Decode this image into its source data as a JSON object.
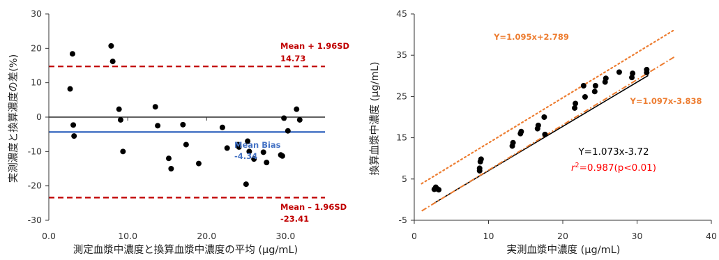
{
  "chart_data": [
    {
      "type": "scatter",
      "title": "",
      "xlabel": "測定血漿中濃度と換算血漿中濃度の平均 (μg/mL)",
      "ylabel": "実測濃度と換算濃度の差(%)",
      "xlim": [
        0,
        35
      ],
      "ylim": [
        -30,
        30
      ],
      "x_ticks": [
        "0.0",
        "10.0",
        "20.0",
        "30.0"
      ],
      "x_tick_values": [
        0,
        10,
        20,
        30
      ],
      "y_ticks": [
        "30",
        "20",
        "10",
        "0",
        "-10",
        "-20",
        "-30"
      ],
      "y_tick_values": [
        30,
        20,
        10,
        0,
        -10,
        -20,
        -30
      ],
      "grid": false,
      "colors": {
        "points": "#000000",
        "bias": "#4472c4",
        "limits": "#c00000",
        "zero": "#000000"
      },
      "series": [
        {
          "points": [
            {
              "x": 2.7,
              "y": 8.2
            },
            {
              "x": 3.0,
              "y": 18.4
            },
            {
              "x": 3.1,
              "y": -2.3
            },
            {
              "x": 3.2,
              "y": -5.5
            },
            {
              "x": 7.9,
              "y": 20.7
            },
            {
              "x": 8.1,
              "y": 16.2
            },
            {
              "x": 8.9,
              "y": 2.3
            },
            {
              "x": 9.1,
              "y": -0.8
            },
            {
              "x": 9.4,
              "y": -10.0
            },
            {
              "x": 13.5,
              "y": 3.0
            },
            {
              "x": 13.8,
              "y": -2.5
            },
            {
              "x": 15.2,
              "y": -12.0
            },
            {
              "x": 15.5,
              "y": -15.0
            },
            {
              "x": 17.0,
              "y": -2.2
            },
            {
              "x": 17.4,
              "y": -8.0
            },
            {
              "x": 19.0,
              "y": -13.5
            },
            {
              "x": 22.0,
              "y": -3.0
            },
            {
              "x": 22.6,
              "y": -9.0
            },
            {
              "x": 24.0,
              "y": -8.0
            },
            {
              "x": 24.1,
              "y": -8.7
            },
            {
              "x": 25.0,
              "y": -19.5
            },
            {
              "x": 25.2,
              "y": -7.0
            },
            {
              "x": 25.4,
              "y": -10.0
            },
            {
              "x": 26.0,
              "y": -12.2
            },
            {
              "x": 27.2,
              "y": -10.2
            },
            {
              "x": 27.6,
              "y": -13.2
            },
            {
              "x": 29.4,
              "y": -11.0
            },
            {
              "x": 29.6,
              "y": -11.3
            },
            {
              "x": 29.8,
              "y": -0.3
            },
            {
              "x": 30.3,
              "y": -4.0
            },
            {
              "x": 31.4,
              "y": 2.3
            },
            {
              "x": 31.8,
              "y": -0.8
            }
          ]
        }
      ],
      "reference_lines": [
        {
          "y": 14.73,
          "style": "dashed",
          "color": "#c00000",
          "label": "Mean + 1.96SD",
          "value_label": "14.73"
        },
        {
          "y": -4.34,
          "style": "solid",
          "color": "#4472c4",
          "label": "Mean Bias",
          "value_label": "-4.34"
        },
        {
          "y": -23.41,
          "style": "dashed",
          "color": "#c00000",
          "label": "Mean – 1.96SD",
          "value_label": "-23.41"
        },
        {
          "y": 0,
          "style": "solid",
          "color": "#000000"
        }
      ]
    },
    {
      "type": "scatter",
      "title": "",
      "xlabel": "実測血漿中濃度 (μg/mL)",
      "ylabel": "換算血漿中濃度 (μg/mL)",
      "xlim": [
        0,
        40
      ],
      "ylim": [
        -5,
        45
      ],
      "x_ticks": [
        "0",
        "10",
        "20",
        "30",
        "40"
      ],
      "x_tick_values": [
        0,
        10,
        20,
        30,
        40
      ],
      "y_ticks": [
        "45",
        "35",
        "25",
        "15",
        "5",
        "-5"
      ],
      "y_tick_values": [
        45,
        35,
        25,
        15,
        5,
        -5
      ],
      "grid": false,
      "colors": {
        "points": "#000000",
        "fit": "#000000",
        "bounds": "#ed7d31",
        "r2": "#ff0000"
      },
      "series": [
        {
          "points": [
            {
              "x": 2.7,
              "y": 2.5
            },
            {
              "x": 2.9,
              "y": 3.0
            },
            {
              "x": 3.1,
              "y": 2.6
            },
            {
              "x": 3.3,
              "y": 2.4
            },
            {
              "x": 8.8,
              "y": 7.0
            },
            {
              "x": 8.8,
              "y": 7.6
            },
            {
              "x": 8.9,
              "y": 9.2
            },
            {
              "x": 9.0,
              "y": 9.8
            },
            {
              "x": 13.2,
              "y": 13.0
            },
            {
              "x": 13.3,
              "y": 13.8
            },
            {
              "x": 14.3,
              "y": 16.0
            },
            {
              "x": 14.4,
              "y": 16.5
            },
            {
              "x": 16.6,
              "y": 17.2
            },
            {
              "x": 16.7,
              "y": 18.0
            },
            {
              "x": 17.5,
              "y": 20.0
            },
            {
              "x": 17.6,
              "y": 15.8
            },
            {
              "x": 21.6,
              "y": 22.2
            },
            {
              "x": 21.7,
              "y": 23.3
            },
            {
              "x": 22.8,
              "y": 27.6
            },
            {
              "x": 23.0,
              "y": 24.9
            },
            {
              "x": 24.3,
              "y": 26.2
            },
            {
              "x": 24.4,
              "y": 27.6
            },
            {
              "x": 25.7,
              "y": 28.5
            },
            {
              "x": 25.8,
              "y": 29.4
            },
            {
              "x": 27.6,
              "y": 30.9
            },
            {
              "x": 29.3,
              "y": 29.6
            },
            {
              "x": 29.4,
              "y": 30.6
            },
            {
              "x": 31.3,
              "y": 30.8
            },
            {
              "x": 31.3,
              "y": 31.5
            }
          ]
        }
      ],
      "lines": [
        {
          "label": "Y=1.073x-3.72",
          "slope": 1.073,
          "intercept": -3.72,
          "x_range": [
            2.5,
            31.5
          ],
          "style": "solid",
          "color": "#000000"
        },
        {
          "label": "Y=1.095x+2.789",
          "slope": 1.095,
          "intercept": 2.789,
          "x_range": [
            1,
            35
          ],
          "style": "dotted",
          "color": "#ed7d31"
        },
        {
          "label": "Y=1.097x-3.838",
          "slope": 1.097,
          "intercept": -3.838,
          "x_range": [
            1,
            35
          ],
          "style": "dashdot",
          "color": "#ed7d31"
        }
      ],
      "r2_prefix": "r",
      "r2_sup": "2",
      "r2_value": "=0.987(p<0.01)"
    }
  ]
}
